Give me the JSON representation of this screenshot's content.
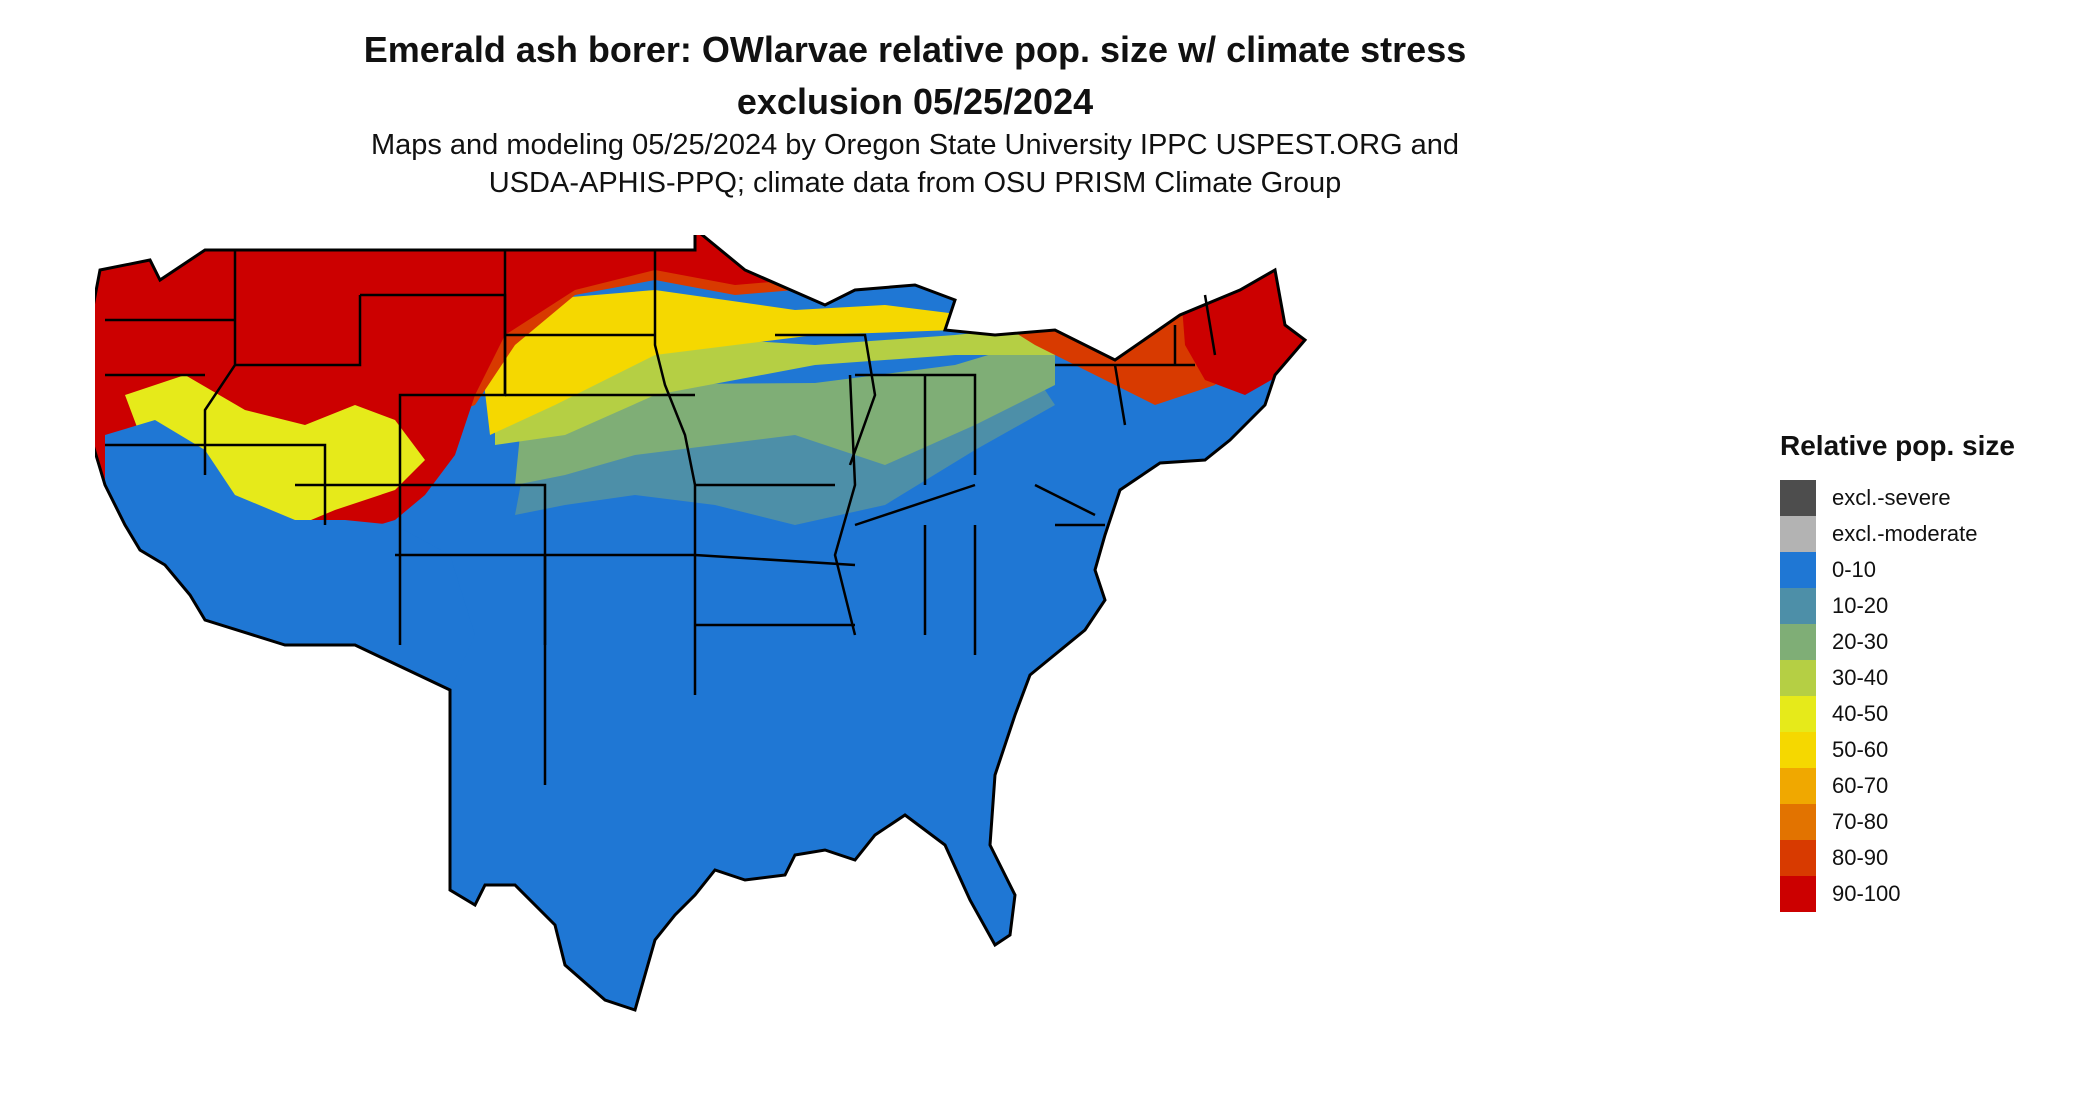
{
  "title_line1": "Emerald ash borer: OWlarvae relative pop. size w/ climate stress",
  "title_line2": "exclusion 05/25/2024",
  "subtitle_line1": "Maps and modeling 05/25/2024 by Oregon State University IPPC USPEST.ORG and",
  "subtitle_line2": "USDA-APHIS-PPQ; climate data from OSU PRISM Climate Group",
  "legend": {
    "title": "Relative pop. size",
    "items": [
      {
        "label": "excl.-severe",
        "color": "#4d4d4d"
      },
      {
        "label": "excl.-moderate",
        "color": "#b3b3b3"
      },
      {
        "label": "0-10",
        "color": "#1f77d4"
      },
      {
        "label": "10-20",
        "color": "#4d8fa8"
      },
      {
        "label": "20-30",
        "color": "#7fae76"
      },
      {
        "label": "30-40",
        "color": "#b5cf44"
      },
      {
        "label": "40-50",
        "color": "#e6ea1a"
      },
      {
        "label": "50-60",
        "color": "#f5d800"
      },
      {
        "label": "60-70",
        "color": "#f0a800"
      },
      {
        "label": "70-80",
        "color": "#e27300"
      },
      {
        "label": "80-90",
        "color": "#d83a00"
      },
      {
        "label": "90-100",
        "color": "#cc0000"
      }
    ]
  }
}
